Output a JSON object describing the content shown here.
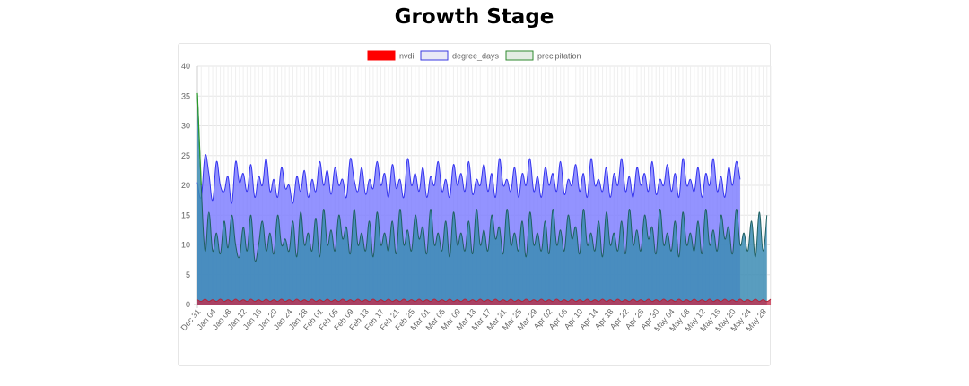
{
  "title": "Growth Stage",
  "chart_data": {
    "type": "area",
    "title": "Growth Stage",
    "xlabel": "",
    "ylabel": "",
    "ylim": [
      0,
      40
    ],
    "yticks": [
      0,
      5,
      10,
      15,
      20,
      25,
      30,
      35,
      40
    ],
    "grid": true,
    "legend_position": "top",
    "x_tick_labels": [
      "Dec 31",
      "Jan 04",
      "Jan 08",
      "Jan 12",
      "Jan 16",
      "Jan 20",
      "Jan 24",
      "Jan 28",
      "Feb 01",
      "Feb 05",
      "Feb 09",
      "Feb 13",
      "Feb 17",
      "Feb 21",
      "Feb 25",
      "Mar 01",
      "Mar 05",
      "Mar 09",
      "Mar 13",
      "Mar 17",
      "Mar 21",
      "Mar 25",
      "Mar 29",
      "Apr 02",
      "Apr 06",
      "Apr 10",
      "Apr 14",
      "Apr 18",
      "Apr 22",
      "Apr 26",
      "Apr 30",
      "May 04",
      "May 08",
      "May 12",
      "May 16",
      "May 20",
      "May 24",
      "May 28"
    ],
    "series": [
      {
        "name": "nvdi",
        "color": "#ff0000",
        "fill": "rgba(200,40,70,0.75)",
        "values": [
          0.8,
          0.5,
          0.9,
          0.5,
          0.8,
          0.5,
          0.9,
          0.5,
          0.8,
          0.5,
          0.9,
          0.5,
          0.8,
          0.5,
          0.9,
          0.5,
          0.8,
          0.5,
          0.9,
          0.5,
          0.8,
          0.5,
          0.9,
          0.5,
          0.8,
          0.5,
          0.9,
          0.5,
          0.8,
          0.5,
          0.9,
          0.5,
          0.8,
          0.5,
          0.9,
          0.5,
          0.8,
          0.5,
          0.9,
          0.5,
          0.8,
          0.5,
          0.9,
          0.5,
          0.8,
          0.5,
          0.9,
          0.5,
          0.8,
          0.5,
          0.9,
          0.5,
          0.8,
          0.5,
          0.9,
          0.5,
          0.8,
          0.5,
          0.9,
          0.5,
          0.8,
          0.5,
          0.9,
          0.5,
          0.8,
          0.5,
          0.9,
          0.5,
          0.8,
          0.5,
          0.9,
          0.5,
          0.8,
          0.5,
          0.9,
          0.5,
          0.8,
          0.5,
          0.9,
          0.5,
          0.8,
          0.5,
          0.9,
          0.5,
          0.8,
          0.5,
          0.9,
          0.5,
          0.8,
          0.5,
          0.9,
          0.5,
          0.8,
          0.5,
          0.9,
          0.5,
          0.8,
          0.5,
          0.9,
          0.5,
          0.8,
          0.5,
          0.9,
          0.5,
          0.8,
          0.5,
          0.9,
          0.5,
          0.8,
          0.5,
          0.9,
          0.5,
          0.8,
          0.5,
          0.9,
          0.5,
          0.8,
          0.5,
          0.9,
          0.5,
          0.8,
          0.5,
          0.9,
          0.5,
          0.8,
          0.5,
          0.9,
          0.5,
          0.8,
          0.5,
          0.9,
          0.5,
          0.8,
          0.5,
          0.9,
          0.5,
          0.8,
          0.5,
          0.9,
          0.5,
          0.8,
          0.5,
          0.9,
          0.5,
          0.8,
          0.5,
          0.9,
          0.5,
          0.8,
          0.5,
          0.9
        ]
      },
      {
        "name": "degree_days",
        "color": "#3333ee",
        "fill": "rgba(120,120,255,0.8)",
        "values": [
          20.5,
          18,
          25,
          22,
          17.5,
          24,
          20,
          19,
          21.5,
          17,
          24,
          20.5,
          22,
          19,
          23.5,
          18,
          21.5,
          20,
          24.5,
          19,
          21,
          18,
          23,
          19.5,
          20,
          17,
          21.5,
          19,
          22.5,
          18,
          21,
          19,
          24,
          20,
          22.5,
          18.5,
          23,
          20,
          21,
          18,
          24.5,
          21,
          19,
          23,
          18.5,
          21,
          19.5,
          24,
          20,
          22,
          18,
          23.5,
          19.5,
          21,
          18,
          24.5,
          20,
          22,
          19,
          23,
          18,
          21.5,
          20,
          24,
          19,
          21,
          18,
          23.5,
          20,
          22,
          19,
          24,
          18.5,
          21,
          20,
          23.5,
          19,
          22,
          18,
          24.5,
          20,
          21,
          19,
          23,
          18,
          22,
          20,
          24.5,
          19,
          21.5,
          18,
          23,
          20,
          22,
          19,
          24,
          18.5,
          21,
          20,
          23.5,
          19,
          22,
          18,
          24.5,
          20,
          21,
          19,
          23,
          18,
          22,
          20,
          24.5,
          19,
          21.5,
          18,
          23,
          20,
          22,
          19,
          24,
          18.5,
          21,
          20,
          23.5,
          19,
          22,
          18,
          24.5,
          20,
          21,
          19,
          23,
          18,
          22,
          20,
          24.5,
          19,
          21.5,
          18,
          23,
          20,
          24,
          21
        ],
        "comment_removed": true
      },
      {
        "name": "precipitation",
        "color": "#2a8a2a",
        "fill": "rgba(60,140,180,0.85)",
        "values": [
          35.5,
          20,
          9,
          15.5,
          9,
          12,
          8.5,
          14,
          9.5,
          15,
          10,
          8,
          13,
          9,
          15,
          7.5,
          10,
          14,
          9,
          12,
          8.5,
          15,
          10,
          11,
          9,
          14,
          8,
          15.5,
          10,
          12,
          9,
          14.5,
          8,
          16,
          10,
          12.5,
          9,
          15,
          11,
          13,
          8.5,
          16,
          10,
          12,
          9,
          14,
          8,
          15.5,
          10,
          12,
          9,
          14,
          8.5,
          16,
          10,
          12.5,
          9,
          15,
          11,
          13,
          8.5,
          16,
          10,
          12,
          9,
          14,
          8,
          15.5,
          10,
          12,
          9,
          14,
          8.5,
          16,
          10,
          12.5,
          9,
          15,
          11,
          13,
          8.5,
          16,
          10,
          12,
          9,
          14,
          8,
          15.5,
          10,
          12,
          9,
          14,
          8.5,
          16,
          10,
          12.5,
          9,
          15,
          11,
          13,
          8.5,
          16,
          10,
          12,
          9,
          14,
          8,
          15.5,
          10,
          12,
          9,
          14,
          8.5,
          16,
          10,
          12.5,
          9,
          15,
          11,
          13,
          8.5,
          16,
          10,
          12,
          9,
          14,
          8,
          15.5,
          10,
          12,
          9,
          14,
          8.5,
          16,
          10,
          12.5,
          9,
          15,
          11,
          13,
          8.5,
          16,
          10,
          12,
          9,
          14,
          8,
          15.5,
          9,
          15
        ]
      }
    ]
  }
}
